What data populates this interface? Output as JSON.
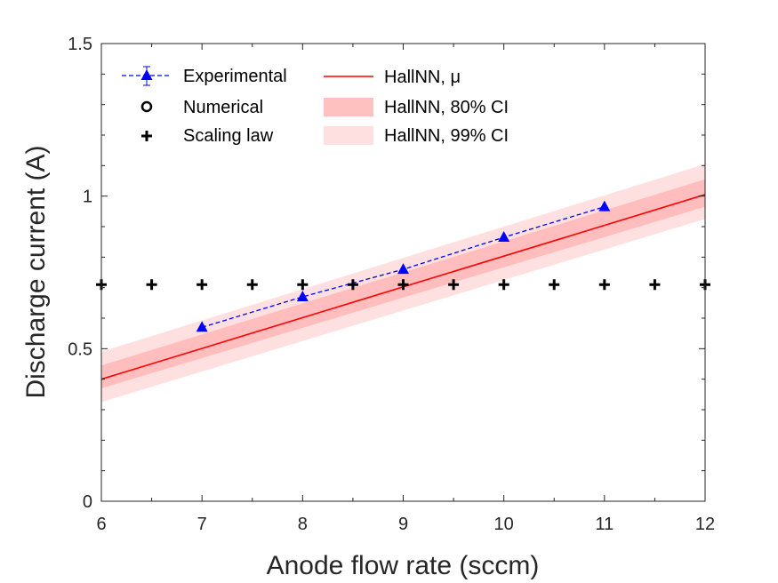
{
  "chart_data": {
    "type": "line",
    "xlabel": "Anode flow rate (sccm)",
    "ylabel": "Discharge current (A)",
    "xlim": [
      6,
      12
    ],
    "ylim": [
      0,
      1.5
    ],
    "xticks": [
      "6",
      "7",
      "8",
      "9",
      "10",
      "11",
      "12"
    ],
    "yticks": [
      "0",
      "0.5",
      "1",
      "1.5"
    ],
    "grid": false,
    "legend_position": "top-left",
    "series": [
      {
        "name": "Experimental",
        "kind": "line-marker",
        "color": "#0000ff",
        "x": [
          7,
          8,
          9,
          10,
          11
        ],
        "y": [
          0.57,
          0.67,
          0.76,
          0.865,
          0.965
        ]
      },
      {
        "name": "Numerical",
        "kind": "marker",
        "color": "#000000",
        "x": [],
        "y": []
      },
      {
        "name": "Scaling law",
        "kind": "marker",
        "color": "#000000",
        "x": [
          6,
          6.5,
          7,
          7.5,
          8,
          8.5,
          9,
          9.5,
          10,
          10.5,
          11,
          11.5,
          12
        ],
        "y": [
          0.71,
          0.71,
          0.71,
          0.71,
          0.71,
          0.71,
          0.71,
          0.71,
          0.71,
          0.71,
          0.71,
          0.71,
          0.71
        ]
      },
      {
        "name": "HallNN, μ",
        "kind": "line",
        "color": "#ff0000",
        "x": [
          6,
          12
        ],
        "y": [
          0.4,
          1.005
        ]
      },
      {
        "name": "HallNN, 80% CI",
        "kind": "band",
        "color": "#ffb3b3",
        "x": [
          6,
          12
        ],
        "lower": [
          0.37,
          0.965
        ],
        "upper": [
          0.445,
          1.055
        ]
      },
      {
        "name": "HallNN, 99% CI",
        "kind": "band",
        "color": "#ffdddd",
        "x": [
          6,
          12
        ],
        "lower": [
          0.325,
          0.925
        ],
        "upper": [
          0.49,
          1.105
        ]
      }
    ]
  }
}
